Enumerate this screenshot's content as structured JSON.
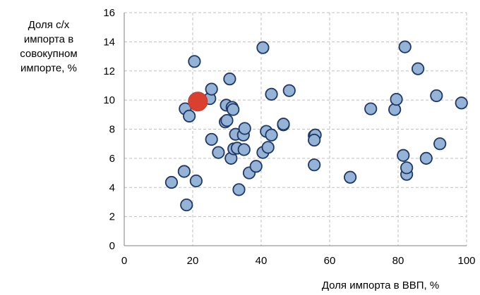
{
  "chart_data": {
    "type": "scatter",
    "ylabel_lines": [
      "Доля с/х",
      "импорта в",
      "совокупном",
      "импорте, %"
    ],
    "xlabel": "Доля  импорта в ВВП, %",
    "xlim": [
      0,
      100
    ],
    "ylim": [
      0,
      16
    ],
    "xticks": [
      "0",
      "20",
      "40",
      "60",
      "80",
      "100"
    ],
    "yticks": [
      "0",
      "2",
      "4",
      "6",
      "8",
      "10",
      "12",
      "14",
      "16"
    ],
    "grid": true,
    "colors": {
      "points": "#95b3d7",
      "point_edge": "#1f3864",
      "highlight": "#d94030",
      "grid": "#bfbfbf"
    },
    "series": [
      {
        "points": [
          [
            13.8,
            4.35
          ],
          [
            17.5,
            5.1
          ],
          [
            18.2,
            2.8
          ],
          [
            17.8,
            9.4
          ],
          [
            19,
            8.9
          ],
          [
            20.5,
            12.65
          ],
          [
            21,
            4.45
          ],
          [
            25,
            10.1
          ],
          [
            25.5,
            10.75
          ],
          [
            25.5,
            7.3
          ],
          [
            27.5,
            6.4
          ],
          [
            29.5,
            8.5
          ],
          [
            29.8,
            9.65
          ],
          [
            30,
            8.6
          ],
          [
            30.8,
            11.45
          ],
          [
            31.5,
            9.5
          ],
          [
            31.8,
            9.35
          ],
          [
            31.2,
            6.0
          ],
          [
            32,
            6.65
          ],
          [
            32.5,
            7.65
          ],
          [
            33,
            6.7
          ],
          [
            33.5,
            3.85
          ],
          [
            34.8,
            7.6
          ],
          [
            35,
            6.6
          ],
          [
            35.2,
            8.05
          ],
          [
            36.5,
            5.0
          ],
          [
            38.5,
            5.45
          ],
          [
            40.5,
            6.4
          ],
          [
            40.5,
            13.6
          ],
          [
            41.5,
            7.85
          ],
          [
            42,
            6.75
          ],
          [
            43,
            7.6
          ],
          [
            43,
            10.4
          ],
          [
            46.5,
            8.3
          ],
          [
            46.5,
            8.35
          ],
          [
            48.2,
            10.65
          ],
          [
            55.5,
            7.55
          ],
          [
            55.8,
            7.6
          ],
          [
            55.5,
            7.25
          ],
          [
            55.5,
            5.55
          ],
          [
            66,
            4.7
          ],
          [
            72,
            9.4
          ],
          [
            79,
            9.35
          ],
          [
            79.5,
            10.05
          ],
          [
            81.5,
            6.2
          ],
          [
            82,
            13.65
          ],
          [
            82.5,
            4.9
          ],
          [
            82.5,
            5.35
          ],
          [
            85.8,
            12.15
          ],
          [
            88.2,
            6.0
          ],
          [
            91.2,
            10.3
          ],
          [
            92.2,
            7.0
          ],
          [
            98.5,
            9.8
          ]
        ]
      },
      {
        "highlight": true,
        "points": [
          [
            21.5,
            9.9
          ]
        ]
      }
    ]
  }
}
